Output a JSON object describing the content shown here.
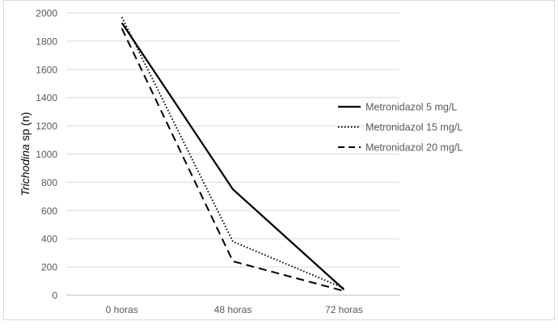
{
  "chart_data": {
    "type": "line",
    "categories": [
      "0 horas",
      "48 horas",
      "72 horas"
    ],
    "series": [
      {
        "name": "Metronidazol 5 mg/L",
        "values": [
          1930,
          750,
          40
        ],
        "dash": "solid"
      },
      {
        "name": "Metronidazol 15 mg/L",
        "values": [
          1970,
          380,
          50
        ],
        "dash": "dotted"
      },
      {
        "name": "Metronidazol 20 mg/L",
        "values": [
          1890,
          240,
          30
        ],
        "dash": "dashed"
      }
    ],
    "title": "",
    "xlabel": "",
    "ylabel_italic": "Trichodina",
    "ylabel_rest": " sp (n)",
    "ylim": [
      0,
      2000
    ],
    "yticks": [
      "0",
      "200",
      "400",
      "600",
      "800",
      "1000",
      "1200",
      "1400",
      "1600",
      "1800",
      "2000"
    ],
    "grid": true,
    "legend_position": "right",
    "colors": {
      "line": "#000000",
      "grid": "#d9d9d9",
      "axis": "#bfbfbf",
      "text": "#595959",
      "border": "#d9d9d9"
    }
  }
}
